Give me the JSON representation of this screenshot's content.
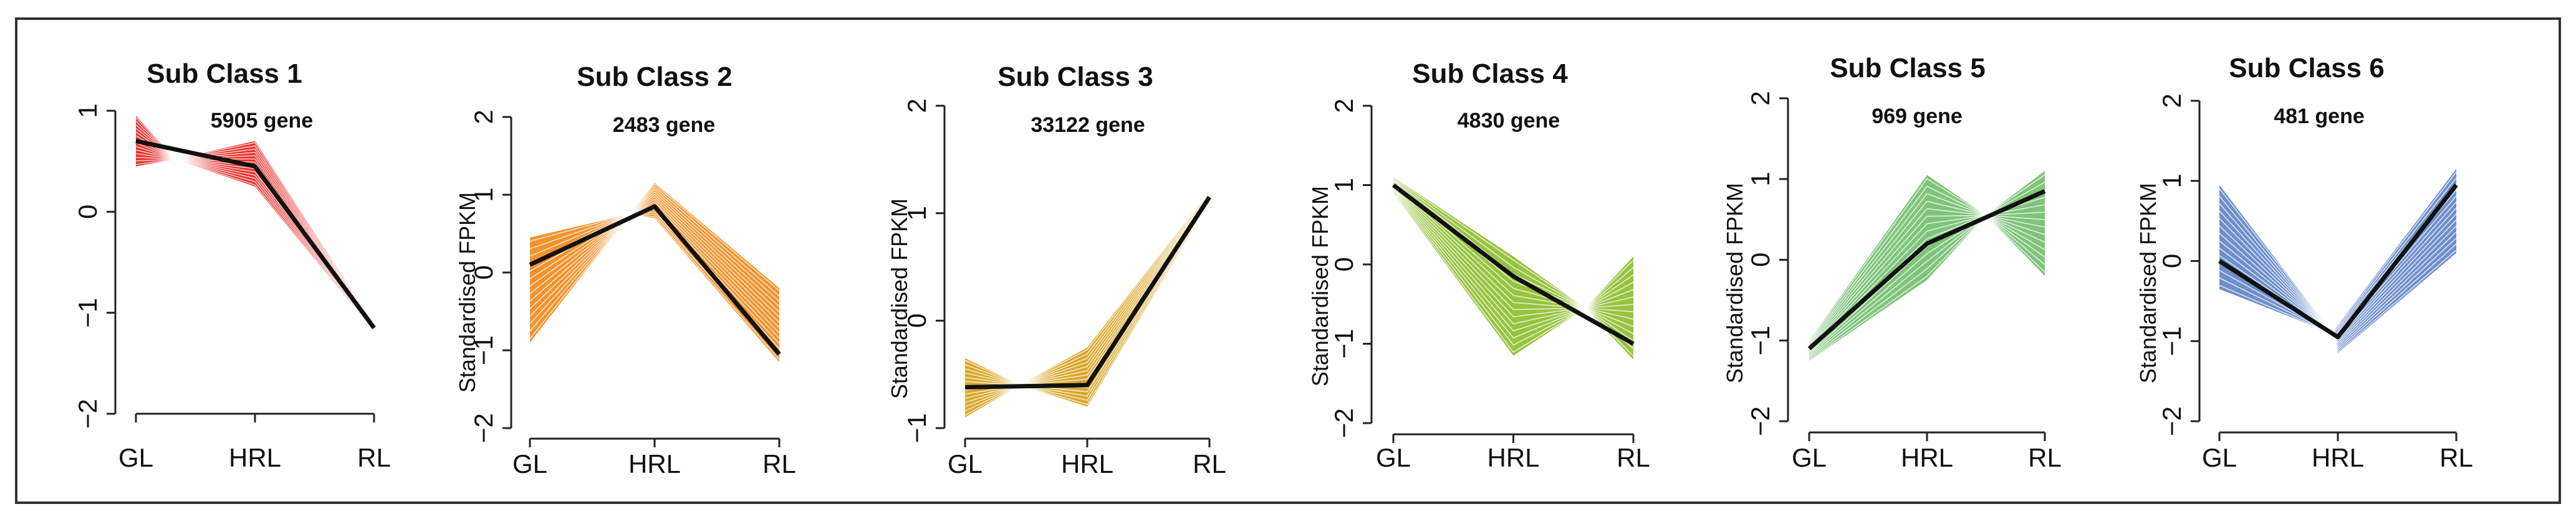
{
  "chart_data": [
    {
      "type": "line",
      "title": "Sub Class 1",
      "gene_count": "5905 gene",
      "ylabel": "",
      "categories": [
        "GL",
        "HRL",
        "RL"
      ],
      "yticks": [
        "−2",
        "−1",
        "0",
        "1"
      ],
      "ylim": [
        -2,
        1
      ],
      "color": "#e8312b",
      "series": [
        {
          "name": "mean",
          "values": [
            0.7,
            0.45,
            -1.15
          ]
        },
        {
          "name": "upper",
          "values": [
            0.95,
            0.7,
            -1.12
          ]
        },
        {
          "name": "lower",
          "values": [
            0.45,
            0.25,
            -1.18
          ]
        }
      ],
      "crossing": {
        "x": 0.33,
        "y": 0.52
      }
    },
    {
      "type": "line",
      "title": "Sub Class 2",
      "gene_count": "2483 gene",
      "ylabel": "Standardised FPKM",
      "categories": [
        "GL",
        "HRL",
        "RL"
      ],
      "yticks": [
        "−2",
        "−1",
        "0",
        "1",
        "2"
      ],
      "ylim": [
        -2,
        2
      ],
      "color": "#f2932e",
      "series": [
        {
          "name": "mean",
          "values": [
            0.1,
            0.85,
            -1.05
          ]
        },
        {
          "name": "upper",
          "values": [
            0.45,
            1.15,
            -0.2
          ]
        },
        {
          "name": "lower",
          "values": [
            -0.9,
            0.7,
            -1.15
          ]
        }
      ],
      "crossing": {
        "x": 0.8,
        "y": 0.75
      }
    },
    {
      "type": "line",
      "title": "Sub Class  3",
      "gene_count": "33122 gene",
      "ylabel": "Standardised FPKM",
      "categories": [
        "GL",
        "HRL",
        "RL"
      ],
      "yticks": [
        "−1",
        "0",
        "1",
        "2"
      ],
      "ylim": [
        -1,
        2
      ],
      "color": "#d9a72b",
      "series": [
        {
          "name": "mean",
          "values": [
            -0.62,
            -0.6,
            1.15
          ]
        },
        {
          "name": "upper",
          "values": [
            -0.35,
            -0.25,
            1.2
          ]
        },
        {
          "name": "lower",
          "values": [
            -0.9,
            -0.8,
            1.1
          ]
        }
      ],
      "crossing": {
        "x": 0.45,
        "y": -0.6
      }
    },
    {
      "type": "line",
      "title": "Sub Class 4",
      "gene_count": "4830 gene",
      "ylabel": "Standardised FPKM",
      "categories": [
        "GL",
        "HRL",
        "RL"
      ],
      "yticks": [
        "−2",
        "−1",
        "0",
        "1",
        "2"
      ],
      "ylim": [
        -2,
        2
      ],
      "color": "#97c440",
      "series": [
        {
          "name": "mean",
          "values": [
            1.0,
            -0.15,
            -1.0
          ]
        },
        {
          "name": "upper",
          "values": [
            1.1,
            0.1,
            0.1
          ]
        },
        {
          "name": "lower",
          "values": [
            0.9,
            -1.15,
            -1.2
          ]
        }
      ],
      "crossing": {
        "x": 1.6,
        "y": -0.55
      }
    },
    {
      "type": "line",
      "title": "Sub Class 5",
      "gene_count": "969 gene",
      "ylabel": "Standardised FPKM",
      "categories": [
        "GL",
        "HRL",
        "RL"
      ],
      "yticks": [
        "−2",
        "−1",
        "0",
        "1",
        "2"
      ],
      "ylim": [
        -2,
        2
      ],
      "color": "#7fc47a",
      "series": [
        {
          "name": "mean",
          "values": [
            -1.1,
            0.2,
            0.85
          ]
        },
        {
          "name": "upper",
          "values": [
            -1.0,
            1.05,
            1.1
          ]
        },
        {
          "name": "lower",
          "values": [
            -1.25,
            -0.25,
            -0.2
          ]
        }
      ],
      "crossing": {
        "x": 1.5,
        "y": 0.55
      }
    },
    {
      "type": "line",
      "title": "Sub Class 6",
      "gene_count": "481 gene",
      "ylabel": "Standardised FPKM",
      "categories": [
        "GL",
        "HRL",
        "RL"
      ],
      "yticks": [
        "−2",
        "−1",
        "0",
        "1",
        "2"
      ],
      "ylim": [
        -2,
        2
      ],
      "color": "#6e8fcc",
      "series": [
        {
          "name": "mean",
          "values": [
            0.0,
            -0.95,
            0.95
          ]
        },
        {
          "name": "upper",
          "values": [
            0.95,
            -0.8,
            1.15
          ]
        },
        {
          "name": "lower",
          "values": [
            -0.35,
            -1.15,
            0.1
          ]
        }
      ],
      "crossing": {
        "x": 0.95,
        "y": -0.9
      }
    }
  ]
}
